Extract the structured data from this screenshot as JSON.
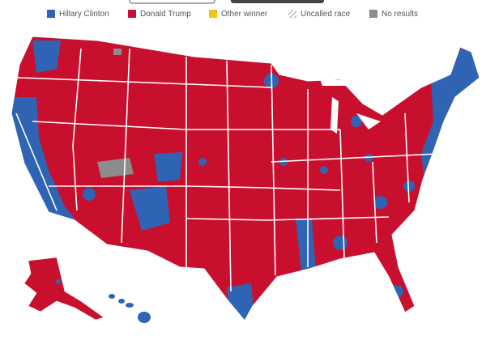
{
  "legend": [
    {
      "label": "Hillary Clinton",
      "color": "#2f63b3"
    },
    {
      "label": "Donald Trump",
      "color": "#c8102e"
    },
    {
      "label": "Other winner",
      "color": "#f2c313"
    },
    {
      "label": "Uncalled race",
      "color": "#9a9a9a",
      "pattern": "hatch"
    },
    {
      "label": "No results",
      "color": "#8c8c8c"
    }
  ]
}
